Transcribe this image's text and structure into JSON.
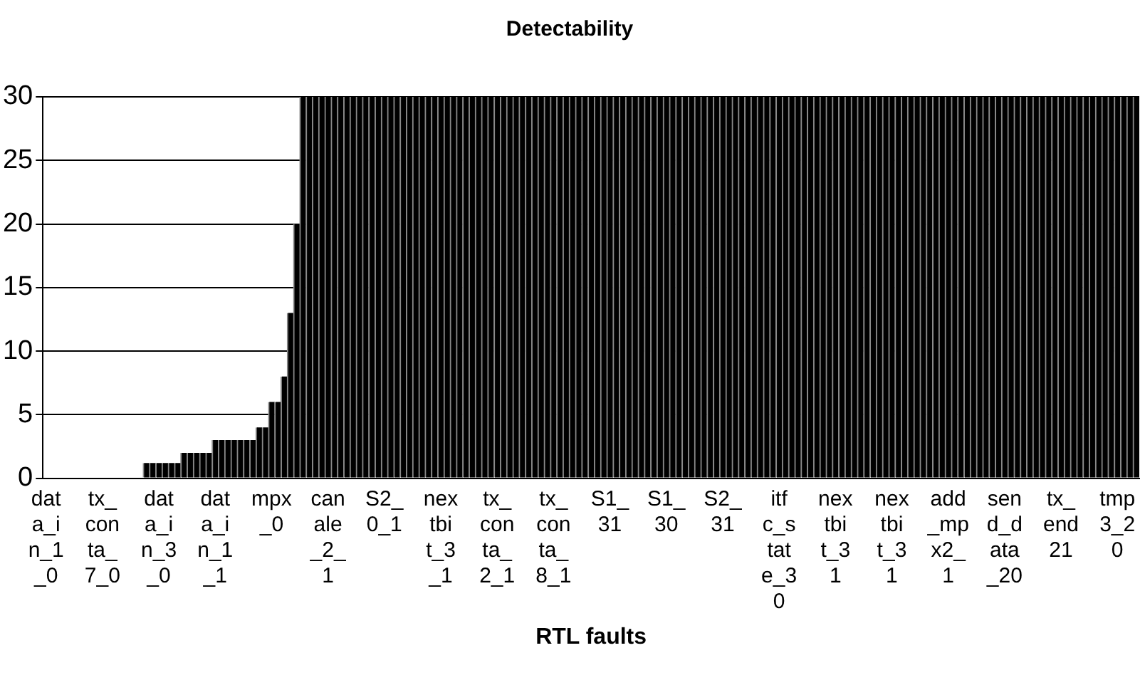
{
  "chart_data": {
    "type": "bar",
    "title": "Detectability",
    "xlabel": "RTL faults",
    "categories": [
      "data_in_1_0",
      null,
      null,
      null,
      null,
      null,
      null,
      null,
      null,
      "tx_conta_7_0",
      null,
      null,
      null,
      null,
      null,
      null,
      null,
      null,
      "data_in_3_0",
      null,
      null,
      null,
      null,
      null,
      null,
      null,
      null,
      "data_in_1_1",
      null,
      null,
      null,
      null,
      null,
      null,
      null,
      null,
      "mpx_0",
      null,
      null,
      null,
      null,
      null,
      null,
      null,
      null,
      "canale_2_1",
      null,
      null,
      null,
      null,
      null,
      null,
      null,
      null,
      "S2_0_1",
      null,
      null,
      null,
      null,
      null,
      null,
      null,
      null,
      "nextbit_3_1",
      null,
      null,
      null,
      null,
      null,
      null,
      null,
      null,
      "tx_conta_2_1",
      null,
      null,
      null,
      null,
      null,
      null,
      null,
      null,
      "tx_conta_8_1",
      null,
      null,
      null,
      null,
      null,
      null,
      null,
      null,
      "S1_31",
      null,
      null,
      null,
      null,
      null,
      null,
      null,
      null,
      "S1_30",
      null,
      null,
      null,
      null,
      null,
      null,
      null,
      null,
      "S2_31",
      null,
      null,
      null,
      null,
      null,
      null,
      null,
      null,
      "itfc_state_30",
      null,
      null,
      null,
      null,
      null,
      null,
      null,
      null,
      "nextbit_31",
      null,
      null,
      null,
      null,
      null,
      null,
      null,
      null,
      "nextbit_31",
      null,
      null,
      null,
      null,
      null,
      null,
      null,
      null,
      "add_mpx2_1",
      null,
      null,
      null,
      null,
      null,
      null,
      null,
      null,
      "send_data_20",
      null,
      null,
      null,
      null,
      null,
      null,
      null,
      null,
      "tx_end21",
      null,
      null,
      null,
      null,
      null,
      null,
      null,
      null,
      "tmp3_20",
      null,
      null,
      null
    ],
    "values": [
      0,
      0,
      0,
      0,
      0,
      0,
      0,
      0,
      0,
      0,
      0,
      0,
      0,
      0,
      0,
      0,
      1.2,
      1.2,
      1.2,
      1.2,
      1.2,
      1.2,
      2,
      2,
      2,
      2,
      2,
      3,
      3,
      3,
      3,
      3,
      3,
      3,
      4,
      4,
      6,
      6,
      8,
      13,
      20,
      30,
      30,
      30,
      30,
      30,
      30,
      30,
      30,
      30,
      30,
      30,
      30,
      30,
      30,
      30,
      30,
      30,
      30,
      30,
      30,
      30,
      30,
      30,
      30,
      30,
      30,
      30,
      30,
      30,
      30,
      30,
      30,
      30,
      30,
      30,
      30,
      30,
      30,
      30,
      30,
      30,
      30,
      30,
      30,
      30,
      30,
      30,
      30,
      30,
      30,
      30,
      30,
      30,
      30,
      30,
      30,
      30,
      30,
      30,
      30,
      30,
      30,
      30,
      30,
      30,
      30,
      30,
      30,
      30,
      30,
      30,
      30,
      30,
      30,
      30,
      30,
      30,
      30,
      30,
      30,
      30,
      30,
      30,
      30,
      30,
      30,
      30,
      30,
      30,
      30,
      30,
      30,
      30,
      30,
      30,
      30,
      30,
      30,
      30,
      30,
      30,
      30,
      30,
      30,
      30,
      30,
      30,
      30,
      30,
      30,
      30,
      30,
      30,
      30,
      30,
      30,
      30,
      30,
      30,
      30,
      30,
      30,
      30,
      30,
      30,
      30,
      30,
      30,
      30,
      30,
      30,
      30,
      30,
      30
    ],
    "color": "#000000",
    "ylim": [
      0,
      30
    ],
    "yticks": [
      0,
      5,
      10,
      15,
      20,
      25,
      30
    ],
    "grid": "y",
    "legend": false
  }
}
